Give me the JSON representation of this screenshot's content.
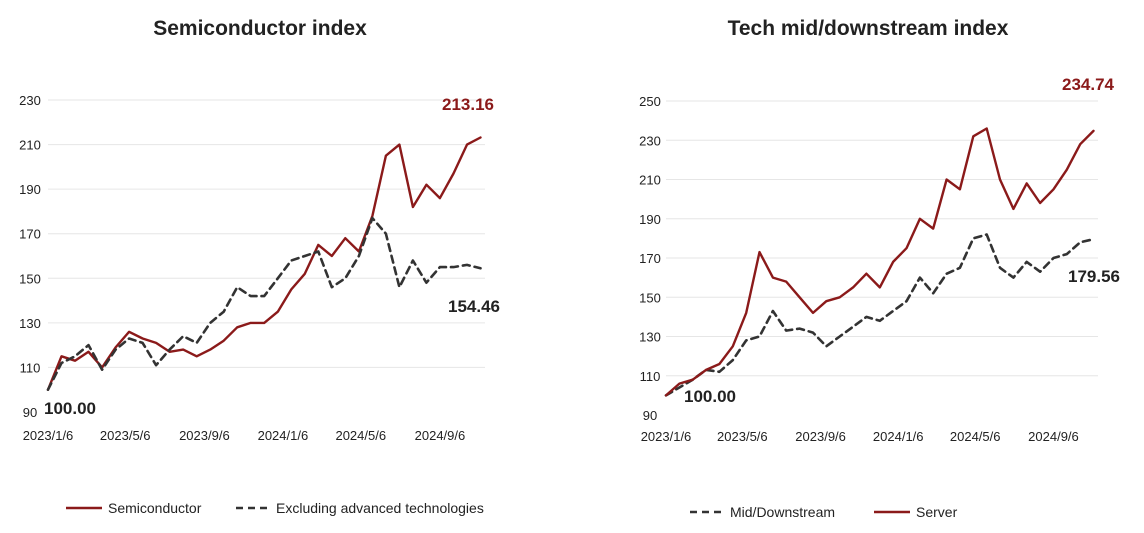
{
  "chart_data": [
    {
      "type": "line",
      "title": "Semiconductor index",
      "xlabel": "",
      "ylabel": "",
      "x_tick_labels": [
        "2023/1/6",
        "2023/5/6",
        "2023/9/6",
        "2024/1/6",
        "2024/5/6",
        "2024/9/6"
      ],
      "y_ticks": [
        90,
        110,
        130,
        150,
        170,
        190,
        210,
        230
      ],
      "ylim": [
        90,
        230
      ],
      "grid": true,
      "legend_position": "bottom",
      "series": [
        {
          "name": "Semiconductor",
          "style": "solid",
          "color": "#8b1a1a",
          "x": [
            "2023/1/6",
            "2023/1/27",
            "2023/2/17",
            "2023/3/10",
            "2023/3/31",
            "2023/4/21",
            "2023/5/12",
            "2023/6/2",
            "2023/6/23",
            "2023/7/14",
            "2023/8/4",
            "2023/8/25",
            "2023/9/15",
            "2023/10/6",
            "2023/10/27",
            "2023/11/17",
            "2023/12/8",
            "2023/12/29",
            "2024/1/19",
            "2024/2/9",
            "2024/3/1",
            "2024/3/22",
            "2024/4/12",
            "2024/5/3",
            "2024/5/24",
            "2024/6/14",
            "2024/7/5",
            "2024/7/26",
            "2024/8/16",
            "2024/9/6",
            "2024/9/27",
            "2024/10/18",
            "2024/11/8"
          ],
          "values": [
            100,
            115,
            113,
            117,
            110,
            119,
            126,
            123,
            121,
            117,
            118,
            115,
            118,
            122,
            128,
            130,
            130,
            135,
            145,
            152,
            165,
            160,
            168,
            162,
            178,
            205,
            210,
            182,
            192,
            186,
            197,
            210,
            213.16
          ]
        },
        {
          "name": "Excluding advanced technologies",
          "style": "dashed",
          "color": "#333333",
          "x": [
            "2023/1/6",
            "2023/1/27",
            "2023/2/17",
            "2023/3/10",
            "2023/3/31",
            "2023/4/21",
            "2023/5/12",
            "2023/6/2",
            "2023/6/23",
            "2023/7/14",
            "2023/8/4",
            "2023/8/25",
            "2023/9/15",
            "2023/10/6",
            "2023/10/27",
            "2023/11/17",
            "2023/12/8",
            "2023/12/29",
            "2024/1/19",
            "2024/2/9",
            "2024/3/1",
            "2024/3/22",
            "2024/4/12",
            "2024/5/3",
            "2024/5/24",
            "2024/6/14",
            "2024/7/5",
            "2024/7/26",
            "2024/8/16",
            "2024/9/6",
            "2024/9/27",
            "2024/10/18",
            "2024/11/8"
          ],
          "values": [
            100,
            112,
            115,
            120,
            109,
            118,
            123,
            121,
            111,
            118,
            124,
            121,
            130,
            135,
            146,
            142,
            142,
            150,
            158,
            160,
            162,
            146,
            150,
            160,
            177,
            170,
            146,
            158,
            148,
            155,
            155,
            156,
            154.46
          ]
        }
      ],
      "annotations": [
        "213.16",
        "154.46",
        "100.00"
      ]
    },
    {
      "type": "line",
      "title": "Tech mid/downstream index",
      "xlabel": "",
      "ylabel": "",
      "x_tick_labels": [
        "2023/1/6",
        "2023/5/6",
        "2023/9/6",
        "2024/1/6",
        "2024/5/6",
        "2024/9/6"
      ],
      "y_ticks": [
        90,
        110,
        130,
        150,
        170,
        190,
        210,
        230,
        250
      ],
      "ylim": [
        90,
        250
      ],
      "grid": true,
      "legend_position": "bottom",
      "series": [
        {
          "name": "Mid/Downstream",
          "style": "dashed",
          "color": "#333333",
          "x": [
            "2023/1/6",
            "2023/1/27",
            "2023/2/17",
            "2023/3/10",
            "2023/3/31",
            "2023/4/21",
            "2023/5/12",
            "2023/6/2",
            "2023/6/23",
            "2023/7/14",
            "2023/8/4",
            "2023/8/25",
            "2023/9/15",
            "2023/10/6",
            "2023/10/27",
            "2023/11/17",
            "2023/12/8",
            "2023/12/29",
            "2024/1/19",
            "2024/2/9",
            "2024/3/1",
            "2024/3/22",
            "2024/4/12",
            "2024/5/3",
            "2024/5/24",
            "2024/6/14",
            "2024/7/5",
            "2024/7/26",
            "2024/8/16",
            "2024/9/6",
            "2024/9/27",
            "2024/10/18",
            "2024/11/8"
          ],
          "values": [
            100,
            104,
            108,
            113,
            112,
            118,
            128,
            130,
            143,
            133,
            134,
            132,
            125,
            130,
            135,
            140,
            138,
            143,
            148,
            160,
            152,
            162,
            165,
            180,
            182,
            165,
            160,
            168,
            163,
            170,
            172,
            178,
            179.56
          ]
        },
        {
          "name": "Server",
          "style": "solid",
          "color": "#8b1a1a",
          "x": [
            "2023/1/6",
            "2023/1/27",
            "2023/2/17",
            "2023/3/10",
            "2023/3/31",
            "2023/4/21",
            "2023/5/12",
            "2023/6/2",
            "2023/6/23",
            "2023/7/14",
            "2023/8/4",
            "2023/8/25",
            "2023/9/15",
            "2023/10/6",
            "2023/10/27",
            "2023/11/17",
            "2023/12/8",
            "2023/12/29",
            "2024/1/19",
            "2024/2/9",
            "2024/3/1",
            "2024/3/22",
            "2024/4/12",
            "2024/5/3",
            "2024/5/24",
            "2024/6/14",
            "2024/7/5",
            "2024/7/26",
            "2024/8/16",
            "2024/9/6",
            "2024/9/27",
            "2024/10/18",
            "2024/11/8"
          ],
          "values": [
            100,
            106,
            108,
            113,
            116,
            125,
            142,
            173,
            160,
            158,
            150,
            142,
            148,
            150,
            155,
            162,
            155,
            168,
            175,
            190,
            185,
            210,
            205,
            232,
            236,
            210,
            195,
            208,
            198,
            205,
            215,
            228,
            234.74
          ]
        }
      ],
      "annotations": [
        "234.74",
        "179.56",
        "100.00"
      ]
    }
  ]
}
